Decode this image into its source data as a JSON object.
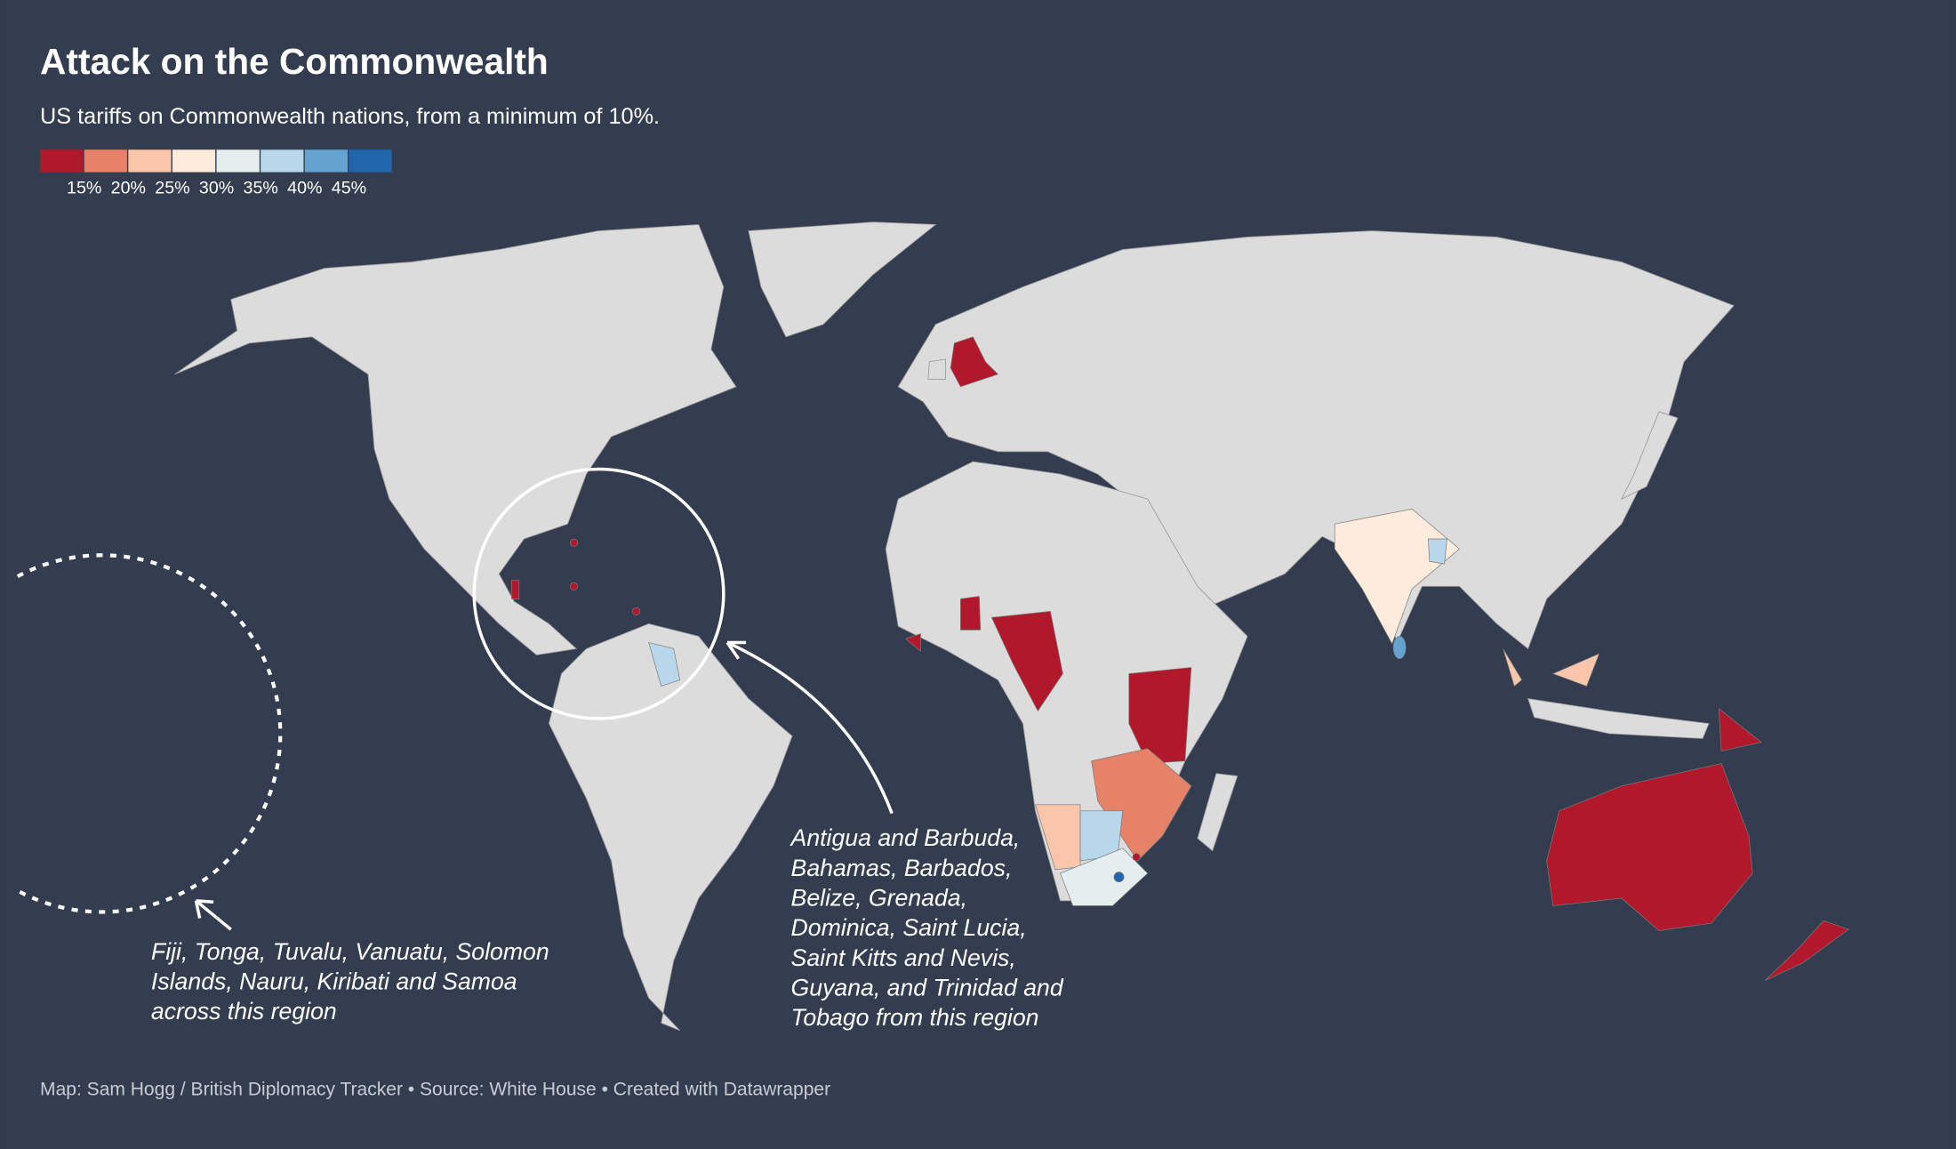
{
  "title": "Attack on the Commonwealth",
  "subtitle": "US tariffs on Commonwealth nations, from a minimum of 10%.",
  "legend": {
    "colors": [
      "#b2182b",
      "#e58267",
      "#f9c5ab",
      "#fdebdc",
      "#e4eeee",
      "#b9d7ea",
      "#65a2d0",
      "#2166ac"
    ],
    "range": [
      10,
      50
    ],
    "ticks": [
      {
        "value": 15,
        "label": "15%"
      },
      {
        "value": 20,
        "label": "20%"
      },
      {
        "value": 25,
        "label": "25%"
      },
      {
        "value": 30,
        "label": "30%"
      },
      {
        "value": 35,
        "label": "35%"
      },
      {
        "value": 40,
        "label": "40%"
      },
      {
        "value": 45,
        "label": "45%"
      }
    ]
  },
  "annotations": [
    {
      "lines": [
        "Fiji, Tonga, Tuvalu, Vanuatu, Solomon",
        "Islands, Nauru, Kiribati and Samoa",
        "across this region"
      ]
    },
    {
      "lines": [
        "Antigua and Barbuda,",
        "Bahamas, Barbados,",
        "Belize, Grenada,",
        "Dominica, Saint Lucia,",
        "Saint Kitts and Nevis,",
        "Guyana, and Trinidad and",
        "Tobago from this region"
      ]
    }
  ],
  "footer": "Map: Sam Hogg / British Diplomacy Tracker • Source: White House • Created with Datawrapper"
}
